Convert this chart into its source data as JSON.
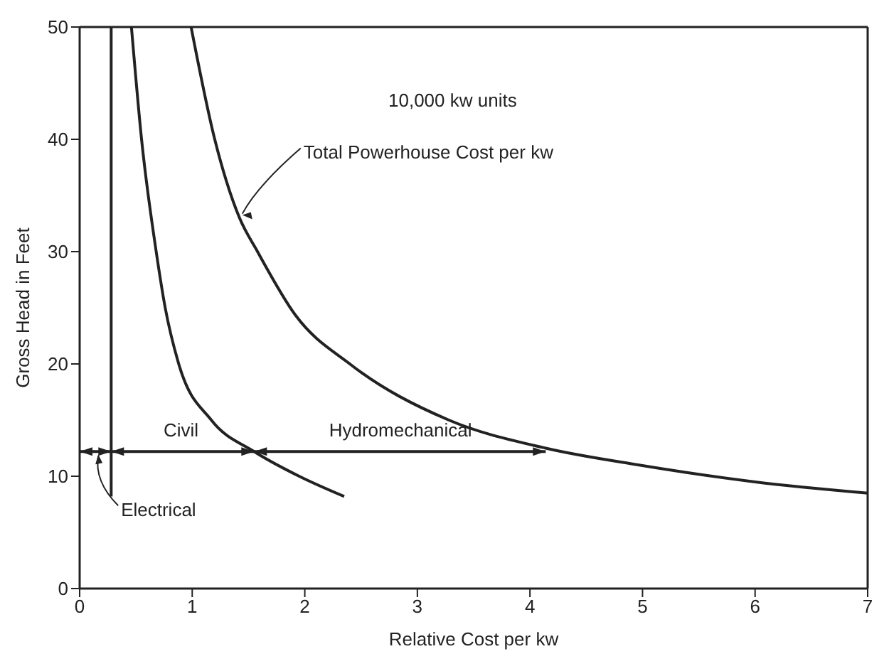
{
  "chart_data": {
    "type": "line",
    "xlabel": "Relative Cost per kw",
    "ylabel": "Gross Head in Feet",
    "xlim": [
      0,
      7
    ],
    "xticks": [
      0,
      1,
      2,
      3,
      4,
      5,
      6,
      7
    ],
    "ylim": [
      0,
      50
    ],
    "yticks": [
      0,
      10,
      20,
      30,
      40,
      50
    ],
    "grid": false,
    "marker": "none",
    "line_style": "solid",
    "series": [
      {
        "color": "#222222",
        "x": [
          0.28,
          0.28
        ],
        "values": [
          50,
          8.2
        ]
      },
      {
        "color": "#222222",
        "x": [
          0.46,
          0.55,
          0.68,
          0.76,
          0.88,
          1.17,
          1.55,
          1.95,
          2.35
        ],
        "values": [
          50,
          40,
          30,
          25,
          20,
          15,
          12.2,
          10,
          8.2
        ]
      },
      {
        "color": "#222222",
        "x": [
          0.99,
          1.2,
          1.42,
          1.58,
          1.92,
          2.4,
          3.28,
          4.14,
          4.97,
          6.0,
          7
        ],
        "values": [
          50,
          40,
          33,
          30,
          24.3,
          20,
          15,
          12.5,
          11,
          9.5,
          8.5
        ]
      },
      {
        "color": "#222222",
        "x": [
          0,
          0.28,
          1.55,
          4.14
        ],
        "values": [
          12.2,
          12.2,
          12.2,
          12.2
        ]
      }
    ],
    "annotations": [
      "10,000 kw units",
      {
        "text": "Total Powerhouse Cost per kw",
        "x": 1.42,
        "y": 33
      },
      {
        "text": "Civil",
        "x": 0.9,
        "y": 12.2
      },
      {
        "text": "Hydromechanical",
        "x": 2.85,
        "y": 12.2
      },
      {
        "text": "Electrical",
        "x": 0.14,
        "y": 12.2
      }
    ]
  }
}
